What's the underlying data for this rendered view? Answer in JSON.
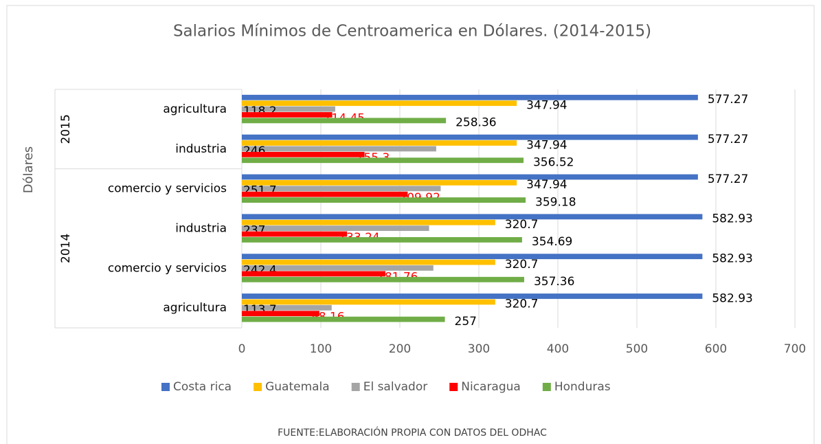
{
  "chart_data": {
    "type": "bar",
    "orientation": "horizontal",
    "title": "Salarios Mínimos de Centroamerica en Dólares. (2014-2015)",
    "y_axis_label": "Dólares",
    "source": "FUENTE:ELABORACIÓN PROPIA CON DATOS DEL ODHAC",
    "groups": [
      {
        "label": "2015",
        "categories": [
          "agricultura",
          "industria"
        ]
      },
      {
        "label": "2014",
        "categories": [
          "comercio y servicios",
          "industria",
          "comercio y servicios",
          "agricultura"
        ]
      }
    ],
    "series": [
      {
        "name": "Costa rica",
        "color": "#4472c4",
        "values": [
          577.27,
          577.27,
          577.27,
          582.93,
          582.93,
          582.93
        ]
      },
      {
        "name": "Guatemala",
        "color": "#ffc000",
        "values": [
          347.94,
          347.94,
          347.94,
          320.7,
          320.7,
          320.7
        ]
      },
      {
        "name": "El salvador",
        "color": "#a5a5a5",
        "values": [
          118.2,
          246,
          251.7,
          237,
          242.4,
          113.7
        ]
      },
      {
        "name": "Nicaragua",
        "color": "#ff0000",
        "values": [
          114.45,
          155.3,
          209.92,
          133.24,
          181.76,
          98.16
        ]
      },
      {
        "name": "Honduras",
        "color": "#70ad47",
        "values": [
          258.36,
          356.52,
          359.18,
          354.69,
          357.36,
          257
        ]
      }
    ],
    "xlim": [
      0,
      700
    ],
    "xticks": [
      0,
      100,
      200,
      300,
      400,
      500,
      600,
      700
    ],
    "grid": true,
    "legend": "bottom"
  }
}
